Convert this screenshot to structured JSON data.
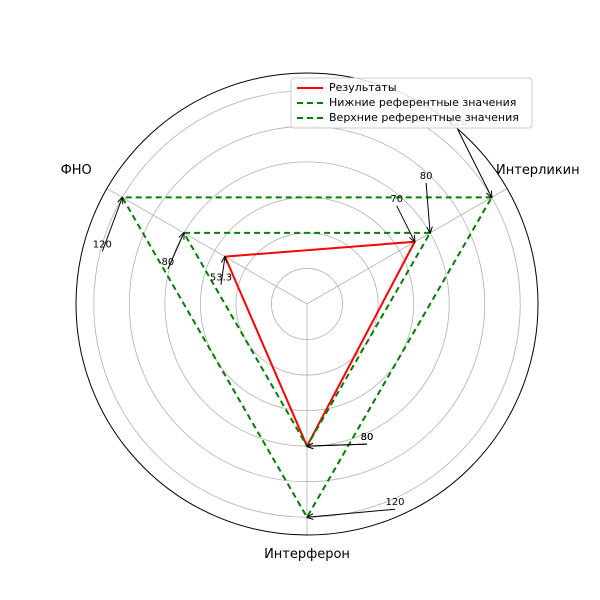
{
  "chart_data": {
    "type": "radar",
    "title": "",
    "categories": [
      "Интерликин",
      "ФНО",
      "Интерферон"
    ],
    "r_range": [
      0,
      130
    ],
    "r_gridlines": [
      20,
      40,
      60,
      80,
      100,
      120
    ],
    "grid": true,
    "legend_position": "top-right",
    "series": [
      {
        "name": "Результаты",
        "values": [
          70,
          53.3,
          80
        ],
        "color": "#ff0000",
        "style": "solid"
      },
      {
        "name": "Нижние референтные значения",
        "values": [
          80,
          80,
          80
        ],
        "color": "#008000",
        "style": "dashed"
      },
      {
        "name": "Верхние референтные значения",
        "values": [
          120,
          120,
          120
        ],
        "color": "#008000",
        "style": "dashed"
      }
    ],
    "annotations": [
      {
        "axis": "Интерликин",
        "value": 70,
        "text": "70"
      },
      {
        "axis": "Интерликин",
        "value": 80,
        "text": "80"
      },
      {
        "axis": "Интерликин",
        "value": 120,
        "text": "120"
      },
      {
        "axis": "ФНО",
        "value": 53.3,
        "text": "53.3"
      },
      {
        "axis": "ФНО",
        "value": 80,
        "text": "80"
      },
      {
        "axis": "ФНО",
        "value": 120,
        "text": "120"
      },
      {
        "axis": "Интерферон",
        "value": 80,
        "text": "80"
      },
      {
        "axis": "Интерферон",
        "value": 80,
        "text": "80"
      },
      {
        "axis": "Интерферон",
        "value": 120,
        "text": "120"
      }
    ]
  }
}
